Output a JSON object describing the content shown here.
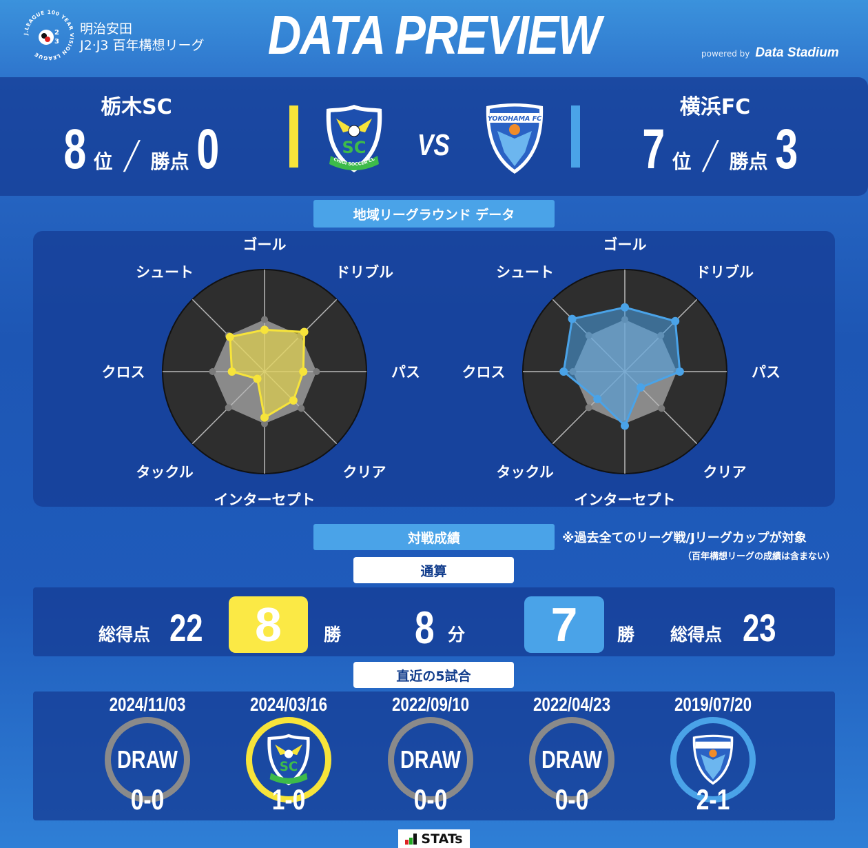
{
  "header": {
    "league_logo_text": "J.LEAGUE 100 YEAR VISION LEAGUE",
    "league_line1": "明治安田",
    "league_line2": "J2·J3 百年構想リーグ",
    "title": "DATA PREVIEW",
    "powered_by": "powered by",
    "provider": "Data Stadium"
  },
  "home": {
    "name": "栃木SC",
    "rank": "8",
    "rank_unit": "位",
    "points_label": "勝点",
    "points": "0",
    "crest_text": "TOCHIGI SOCCER CLUB",
    "color": "#f7e43a"
  },
  "away": {
    "name": "横浜FC",
    "rank": "7",
    "rank_unit": "位",
    "points_label": "勝点",
    "points": "3",
    "crest_text": "YOKOHAMA FC",
    "color": "#4aa3e8"
  },
  "vs": "VS",
  "radar_section_label": "地域リーグラウンド データ",
  "chart_data": {
    "type": "radar",
    "axes": [
      "ゴール",
      "ドリブル",
      "パス",
      "クリア",
      "インターセプト",
      "タックル",
      "クロス",
      "シュート"
    ],
    "range": [
      0,
      1
    ],
    "series": [
      {
        "team": "home",
        "color": "#f7e43a",
        "values": [
          0.41,
          0.55,
          0.38,
          0.4,
          0.45,
          0.1,
          0.32,
          0.48
        ]
      },
      {
        "team": "away",
        "color": "#4aa3e8",
        "values": [
          0.63,
          0.7,
          0.54,
          0.22,
          0.53,
          0.38,
          0.6,
          0.73
        ]
      },
      {
        "team": "average",
        "color": "#8a8a8a",
        "values": [
          0.51,
          0.5,
          0.51,
          0.51,
          0.51,
          0.5,
          0.51,
          0.5
        ]
      }
    ]
  },
  "h2h": {
    "label": "対戦成績",
    "note1": "※過去全てのリーグ戦/Jリーグカップが対象",
    "note2": "（百年構想リーグの成績は含まない）",
    "total_label": "通算",
    "goals_label": "総得点",
    "home_goals": "22",
    "home_wins": "8",
    "win_label": "勝",
    "draws": "8",
    "draw_label": "分",
    "away_wins": "7",
    "away_goals": "23",
    "recent_label": "直近の5試合"
  },
  "recent": [
    {
      "date": "2024/11/03",
      "result": "DRAW",
      "winner": "draw",
      "score": "0-0"
    },
    {
      "date": "2024/03/16",
      "result": "",
      "winner": "home",
      "score": "1-0"
    },
    {
      "date": "2022/09/10",
      "result": "DRAW",
      "winner": "draw",
      "score": "0-0"
    },
    {
      "date": "2022/04/23",
      "result": "DRAW",
      "winner": "draw",
      "score": "0-0"
    },
    {
      "date": "2019/07/20",
      "result": "",
      "winner": "away",
      "score": "2-1"
    }
  ],
  "footer": {
    "stats_logo": "STATs"
  }
}
